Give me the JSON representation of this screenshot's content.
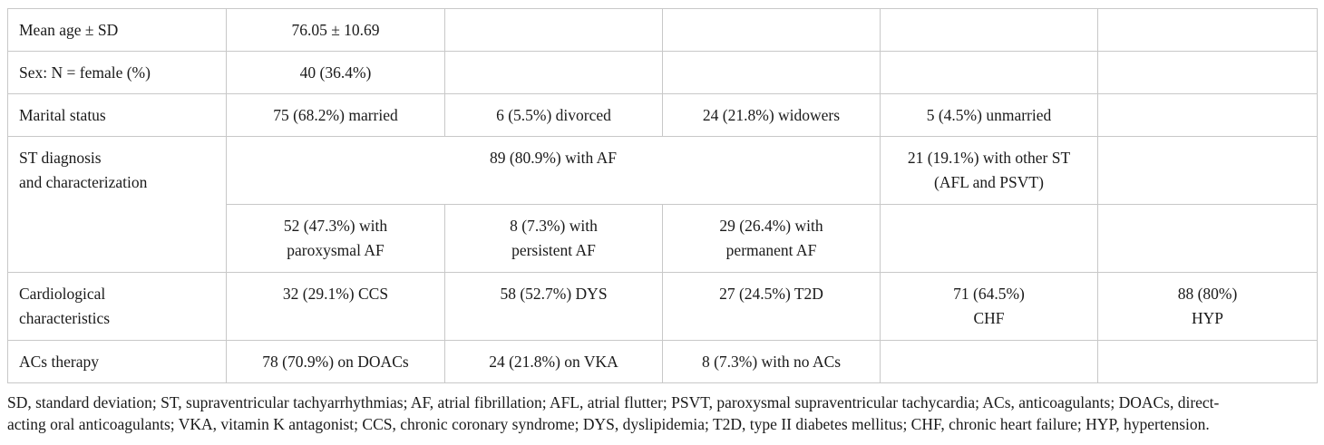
{
  "table": {
    "rows": {
      "age": {
        "label": "Mean age ± SD",
        "value": "76.05 ± 10.69"
      },
      "sex": {
        "label": "Sex: N = female (%)",
        "value": "40 (36.4%)"
      },
      "marital": {
        "label": "Marital status",
        "values": [
          "75 (68.2%) married",
          "6 (5.5%) divorced",
          "24 (21.8%) widowers",
          "5 (4.5%) unmarried"
        ]
      },
      "st": {
        "label_lines": [
          "ST diagnosis",
          "and characterization"
        ],
        "af_total": "89 (80.9%) with AF",
        "other_lines": [
          "21 (19.1%) with other ST",
          "(AFL and PSVT)"
        ],
        "af_types": [
          [
            "52 (47.3%) with",
            "paroxysmal AF"
          ],
          [
            "8 (7.3%) with",
            "persistent AF"
          ],
          [
            "29 (26.4%) with",
            "permanent AF"
          ]
        ]
      },
      "cardio": {
        "label_lines": [
          "Cardiological",
          "characteristics"
        ],
        "values": [
          "32 (29.1%) CCS",
          "58 (52.7%) DYS",
          "27 (24.5%) T2D"
        ],
        "chf_lines": [
          "71 (64.5%)",
          "CHF"
        ],
        "hyp_lines": [
          "88 (80%)",
          "HYP"
        ]
      },
      "acs": {
        "label": "ACs therapy",
        "values": [
          "78 (70.9%) on DOACs",
          "24 (21.8%) on VKA",
          "8 (7.3%) with no ACs"
        ]
      }
    }
  },
  "footnote": {
    "line1": "SD, standard deviation; ST, supraventricular tachyarrhythmias; AF, atrial fibrillation; AFL, atrial flutter; PSVT, paroxysmal supraventricular tachycardia; ACs, anticoagulants; DOACs, direct-",
    "line2": "acting oral anticoagulants; VKA, vitamin K antagonist; CCS, chronic coronary syndrome; DYS, dyslipidemia; T2D, type II diabetes mellitus; CHF, chronic heart failure; HYP, hypertension."
  }
}
